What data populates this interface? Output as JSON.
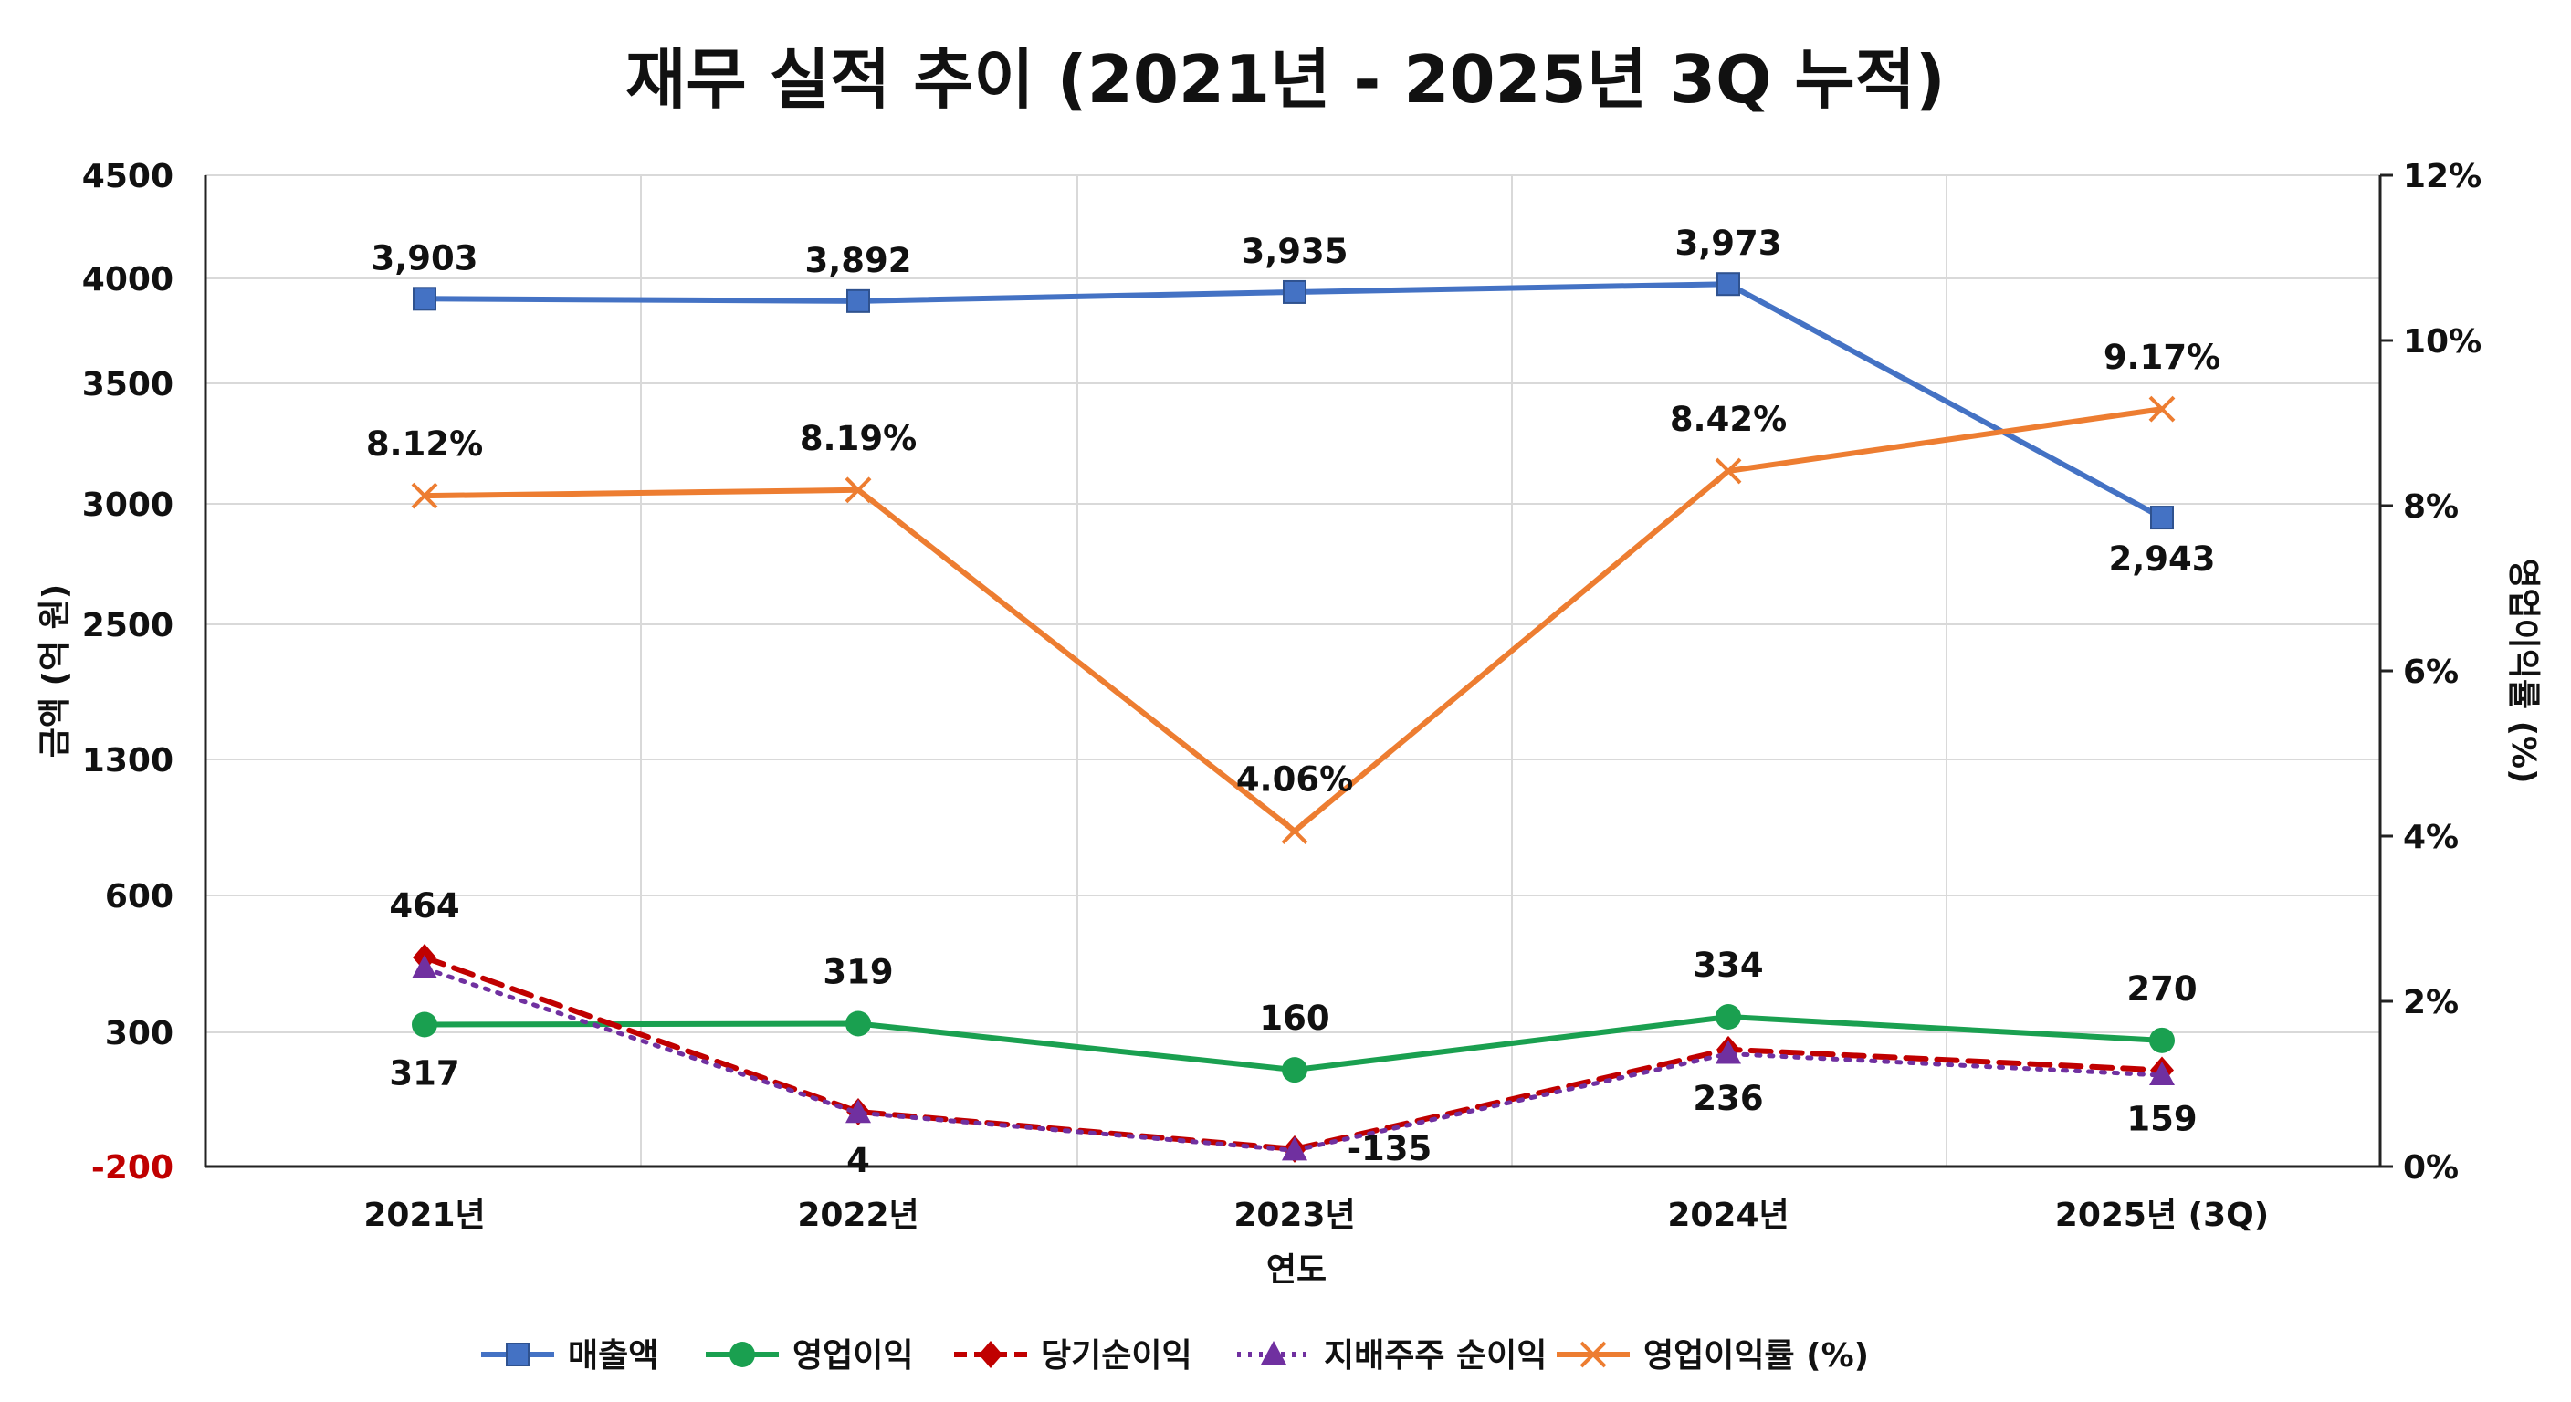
{
  "chart_data": {
    "type": "line",
    "title": "재무 실적 추이 (2021년 - 2025년 3Q 누적)",
    "xlabel": "연도",
    "ylabel": "금액 (억 원)",
    "y2label": "영업이익률 (%)",
    "categories": [
      "2021년",
      "2022년",
      "2023년",
      "2024년",
      "2025년 (3Q)"
    ],
    "y_ticks": [
      "-200",
      "300",
      "600",
      "1300",
      "2500",
      "3000",
      "3500",
      "4000",
      "4500"
    ],
    "y2_ticks": [
      "0%",
      "2%",
      "4%",
      "6%",
      "8%",
      "10%",
      "12%"
    ],
    "y2lim": [
      0,
      12
    ],
    "series": [
      {
        "name": "매출액",
        "axis": "left",
        "color": "#4472c4",
        "marker": "square",
        "dash": "solid",
        "values": [
          3903,
          3892,
          3935,
          3973,
          2943
        ],
        "labels": [
          "3,903",
          "3,892",
          "3,935",
          "3,973",
          "2,943"
        ]
      },
      {
        "name": "영업이익",
        "axis": "left",
        "color": "#1aa050",
        "marker": "circle",
        "dash": "solid",
        "values": [
          317,
          319,
          160,
          334,
          270
        ],
        "labels": [
          "317",
          "319",
          "160",
          "334",
          "270"
        ]
      },
      {
        "name": "당기순이익",
        "axis": "left",
        "color": "#c00000",
        "marker": "diamond",
        "dash": "dashed",
        "values": [
          464,
          4,
          -135,
          236,
          159
        ],
        "labels": [
          "464",
          "4",
          "-135",
          "236",
          "159"
        ]
      },
      {
        "name": "지배주주 순이익",
        "axis": "left",
        "color": "#7030a0",
        "marker": "triangle",
        "dash": "dotted",
        "values": [
          440,
          0,
          -140,
          220,
          140
        ],
        "labels": []
      },
      {
        "name": "영업이익률 (%)",
        "axis": "right",
        "color": "#ed7d31",
        "marker": "x",
        "dash": "solid",
        "values": [
          8.12,
          8.19,
          4.06,
          8.42,
          9.17
        ],
        "labels": [
          "8.12%",
          "8.19%",
          "4.06%",
          "8.42%",
          "9.17%"
        ]
      }
    ],
    "legend": {
      "position": "bottom"
    }
  }
}
